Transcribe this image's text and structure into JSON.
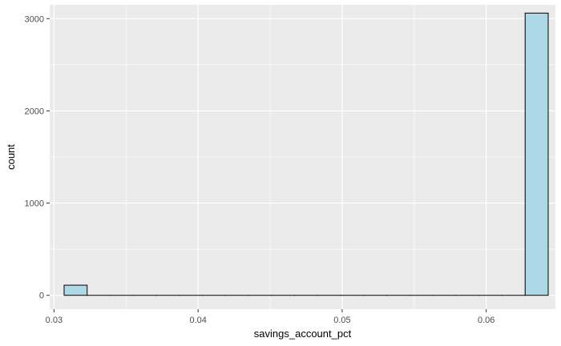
{
  "chart_data": {
    "type": "bar",
    "histogram": true,
    "xlabel": "savings_account_pct",
    "ylabel": "count",
    "xlim": [
      0.0297,
      0.0648
    ],
    "ylim": [
      -150,
      3150
    ],
    "x_ticks": [
      {
        "value": 0.03,
        "label": "0.03"
      },
      {
        "value": 0.04,
        "label": "0.04"
      },
      {
        "value": 0.05,
        "label": "0.05"
      },
      {
        "value": 0.06,
        "label": "0.06"
      }
    ],
    "y_ticks": [
      {
        "value": 0,
        "label": "0"
      },
      {
        "value": 1000,
        "label": "1000"
      },
      {
        "value": 2000,
        "label": "2000"
      },
      {
        "value": 3000,
        "label": "3000"
      }
    ],
    "bin_start": 0.0307,
    "bin_width": 0.0016,
    "counts": [
      110,
      0,
      0,
      0,
      0,
      0,
      0,
      0,
      0,
      0,
      0,
      0,
      0,
      0,
      0,
      0,
      0,
      0,
      0,
      0,
      3060
    ],
    "grid": true,
    "colors": {
      "panel": "#ebebeb",
      "grid": "#ffffff",
      "bar_fill": "#add8e6",
      "bar_outline": "#000000"
    }
  }
}
